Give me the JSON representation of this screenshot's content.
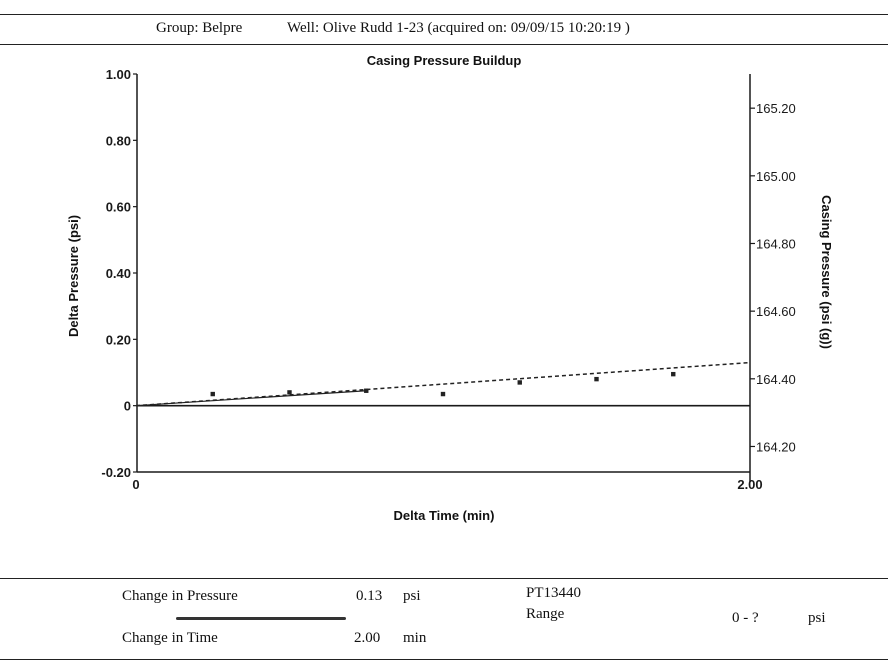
{
  "header": {
    "group": "Group: Belpre",
    "well": "Well: Olive Rudd 1-23 (acquired on: 09/09/15 10:20:19 )"
  },
  "chart_data": {
    "type": "scatter",
    "title": "Casing Pressure Buildup",
    "xlabel": "Delta Time (min)",
    "ylabel": "Delta Pressure (psi)",
    "y2label": "Casing Pressure (psi (g))",
    "xlim": [
      0,
      2.0
    ],
    "ylim": [
      -0.2,
      1.0
    ],
    "y2lim": [
      164.095,
      165.301
    ],
    "x_ticks": [
      "0",
      "2.00"
    ],
    "y_ticks": [
      {
        "value": -0.2,
        "label": "-0.20"
      },
      {
        "value": 0,
        "label": "0"
      },
      {
        "value": 0.2,
        "label": "0.20"
      },
      {
        "value": 0.4,
        "label": "0.40"
      },
      {
        "value": 0.6,
        "label": "0.60"
      },
      {
        "value": 0.8,
        "label": "0.80"
      },
      {
        "value": 1.0,
        "label": "1.00"
      }
    ],
    "y2_ticks": [
      {
        "value": 164.2,
        "label": "164.20"
      },
      {
        "value": 164.4,
        "label": "164.40"
      },
      {
        "value": 164.6,
        "label": "164.60"
      },
      {
        "value": 164.8,
        "label": "164.80"
      },
      {
        "value": 165.0,
        "label": "165.00"
      },
      {
        "value": 165.2,
        "label": "165.20"
      }
    ],
    "series": [
      {
        "style": "points",
        "x": [
          0.25,
          0.5,
          0.75,
          1.0,
          1.25,
          1.5,
          1.75
        ],
        "y": [
          0.035,
          0.04,
          0.045,
          0.035,
          0.07,
          0.08,
          0.095
        ]
      },
      {
        "style": "dashed-trend",
        "x": [
          0,
          2.0
        ],
        "y": [
          0,
          0.13
        ]
      }
    ],
    "zero_line": 0
  },
  "footer": {
    "change_pressure_label": "Change in Pressure",
    "change_pressure_value": "0.13",
    "change_pressure_unit": "psi",
    "change_time_label": "Change in Time",
    "change_time_value": "2.00",
    "change_time_unit": "min",
    "sensor_id": "PT13440",
    "range_label": "Range",
    "range_value": "0 - ?",
    "range_unit": "psi"
  }
}
